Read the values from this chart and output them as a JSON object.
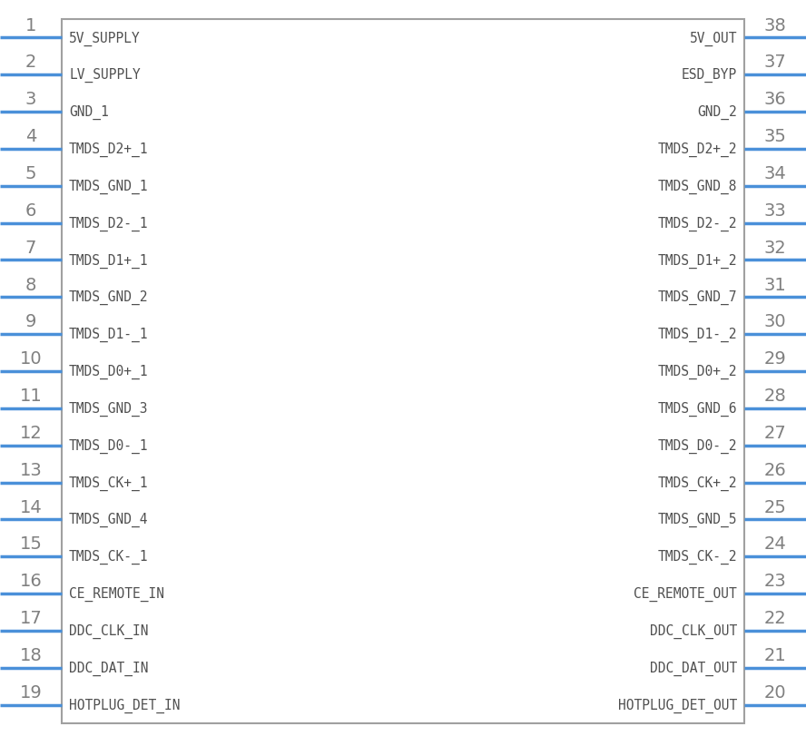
{
  "left_pins": [
    {
      "num": 1,
      "name": "5V_SUPPLY"
    },
    {
      "num": 2,
      "name": "LV_SUPPLY"
    },
    {
      "num": 3,
      "name": "GND_1"
    },
    {
      "num": 4,
      "name": "TMDS_D2+_1"
    },
    {
      "num": 5,
      "name": "TMDS_GND_1"
    },
    {
      "num": 6,
      "name": "TMDS_D2-_1"
    },
    {
      "num": 7,
      "name": "TMDS_D1+_1"
    },
    {
      "num": 8,
      "name": "TMDS_GND_2"
    },
    {
      "num": 9,
      "name": "TMDS_D1-_1"
    },
    {
      "num": 10,
      "name": "TMDS_D0+_1"
    },
    {
      "num": 11,
      "name": "TMDS_GND_3"
    },
    {
      "num": 12,
      "name": "TMDS_D0-_1"
    },
    {
      "num": 13,
      "name": "TMDS_CK+_1"
    },
    {
      "num": 14,
      "name": "TMDS_GND_4"
    },
    {
      "num": 15,
      "name": "TMDS_CK-_1"
    },
    {
      "num": 16,
      "name": "CE_REMOTE_IN"
    },
    {
      "num": 17,
      "name": "DDC_CLK_IN"
    },
    {
      "num": 18,
      "name": "DDC_DAT_IN"
    },
    {
      "num": 19,
      "name": "HOTPLUG_DET_IN"
    }
  ],
  "right_pins": [
    {
      "num": 38,
      "name": "5V_OUT"
    },
    {
      "num": 37,
      "name": "ESD_BYP"
    },
    {
      "num": 36,
      "name": "GND_2"
    },
    {
      "num": 35,
      "name": "TMDS_D2+_2"
    },
    {
      "num": 34,
      "name": "TMDS_GND_8"
    },
    {
      "num": 33,
      "name": "TMDS_D2-_2"
    },
    {
      "num": 32,
      "name": "TMDS_D1+_2"
    },
    {
      "num": 31,
      "name": "TMDS_GND_7"
    },
    {
      "num": 30,
      "name": "TMDS_D1-_2"
    },
    {
      "num": 29,
      "name": "TMDS_D0+_2"
    },
    {
      "num": 28,
      "name": "TMDS_GND_6"
    },
    {
      "num": 27,
      "name": "TMDS_D0-_2"
    },
    {
      "num": 26,
      "name": "TMDS_CK+_2"
    },
    {
      "num": 25,
      "name": "TMDS_GND_5"
    },
    {
      "num": 24,
      "name": "TMDS_CK-_2"
    },
    {
      "num": 23,
      "name": "CE_REMOTE_OUT"
    },
    {
      "num": 22,
      "name": "DDC_CLK_OUT"
    },
    {
      "num": 21,
      "name": "DDC_DAT_OUT"
    },
    {
      "num": 20,
      "name": "HOTPLUG_DET_OUT"
    }
  ],
  "box_color": "#a0a0a0",
  "pin_line_color": "#4a90d9",
  "num_color": "#808080",
  "text_color": "#505050",
  "bg_color": "#ffffff",
  "box_bg": "#ffffff"
}
